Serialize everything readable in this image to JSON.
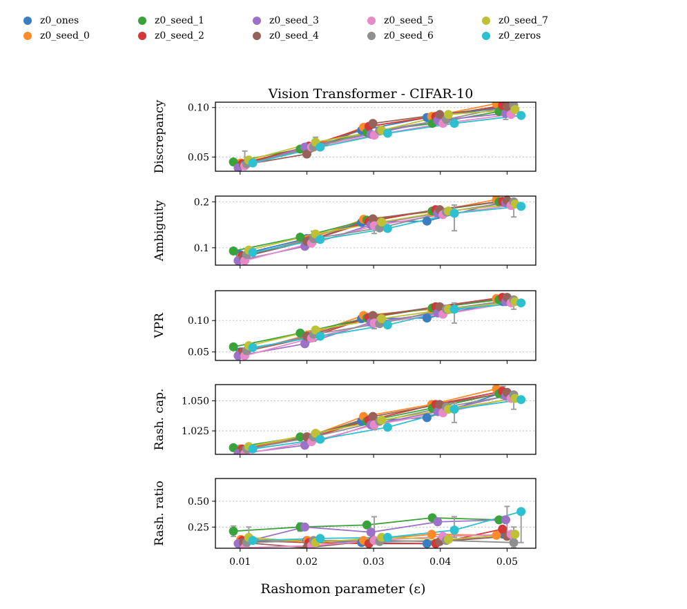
{
  "chart_data": {
    "type": "line",
    "title": "Vision Transformer - CIFAR-10",
    "xlabel": "Rashomon parameter (ε)",
    "xlim": [
      0.0063,
      0.0543
    ],
    "xticks": [
      0.01,
      0.02,
      0.03,
      0.04,
      0.05
    ],
    "xtick_labels": [
      "0.01",
      "0.02",
      "0.03",
      "0.04",
      "0.05"
    ],
    "legend_placement": "top",
    "series": [
      {
        "name": "z0_ones",
        "color": "#3a7ebf",
        "x": [
          0.01,
          0.02,
          0.0282,
          0.038,
          0.0494
        ]
      },
      {
        "name": "z0_seed_0",
        "color": "#ff8a2a",
        "x": [
          0.0101,
          0.0201,
          0.0285,
          0.0387,
          0.0484
        ]
      },
      {
        "name": "z0_seed_1",
        "color": "#3aa23a",
        "x": [
          0.009,
          0.019,
          0.029,
          0.0388,
          0.0488
        ]
      },
      {
        "name": "z0_seed_2",
        "color": "#d33838",
        "x": [
          0.0103,
          0.0203,
          0.0293,
          0.0393,
          0.0493
        ]
      },
      {
        "name": "z0_seed_3",
        "color": "#9b72c8",
        "x": [
          0.0097,
          0.0197,
          0.0296,
          0.0396,
          0.0498
        ]
      },
      {
        "name": "z0_seed_4",
        "color": "#96625a",
        "x": [
          0.0105,
          0.02,
          0.0299,
          0.0399,
          0.05
        ]
      },
      {
        "name": "z0_seed_5",
        "color": "#e88ac8",
        "x": [
          0.0107,
          0.0207,
          0.0301,
          0.0404,
          0.0506
        ]
      },
      {
        "name": "z0_seed_6",
        "color": "#8f8f8f",
        "x": [
          0.011,
          0.021,
          0.0309,
          0.0409,
          0.051
        ]
      },
      {
        "name": "z0_seed_7",
        "color": "#bec036",
        "x": [
          0.0113,
          0.0213,
          0.0312,
          0.0412,
          0.0512
        ]
      },
      {
        "name": "z0_zeros",
        "color": "#2cc0d0",
        "x": [
          0.0119,
          0.022,
          0.0321,
          0.0421,
          0.0521
        ]
      }
    ],
    "panels": [
      {
        "ylabel": "Discrepancy",
        "ylim": [
          0.0356,
          0.1054
        ],
        "yticks": [
          0.05,
          0.1
        ],
        "ytick_labels": [
          "0.05",
          "0.10"
        ],
        "values": {
          "z0_ones": [
            0.042,
            0.06,
            0.077,
            0.09,
            0.1
          ],
          "z0_seed_0": [
            0.044,
            0.059,
            0.08,
            0.091,
            0.104
          ],
          "z0_seed_1": [
            0.045,
            0.058,
            0.075,
            0.084,
            0.096
          ],
          "z0_seed_2": [
            0.043,
            0.061,
            0.081,
            0.091,
            0.102
          ],
          "z0_seed_3": [
            0.039,
            0.06,
            0.073,
            0.087,
            0.094
          ],
          "z0_seed_4": [
            0.042,
            0.053,
            0.084,
            0.093,
            0.101
          ],
          "z0_seed_5": [
            0.041,
            0.06,
            0.072,
            0.084,
            0.093
          ],
          "z0_seed_6": [
            0.043,
            0.06,
            0.077,
            0.088,
            0.102
          ],
          "z0_seed_7": [
            0.047,
            0.065,
            0.077,
            0.093,
            0.098
          ],
          "z0_zeros": [
            0.044,
            0.06,
            0.074,
            0.084,
            0.092
          ]
        },
        "errors": [
          {
            "x": 0.0107,
            "y": 0.047,
            "err": 0.009
          },
          {
            "x": 0.0213,
            "y": 0.065,
            "err": 0.005
          },
          {
            "x": 0.0498,
            "y": 0.094,
            "err": 0.006
          }
        ]
      },
      {
        "ylabel": "Ambiguity",
        "ylim": [
          0.0622,
          0.2124
        ],
        "yticks": [
          0.1,
          0.2
        ],
        "ytick_labels": [
          "0.1",
          "0.2"
        ],
        "values": {
          "z0_ones": [
            0.085,
            0.12,
            0.155,
            0.158,
            0.2
          ],
          "z0_seed_0": [
            0.08,
            0.118,
            0.162,
            0.178,
            0.205
          ],
          "z0_seed_1": [
            0.093,
            0.123,
            0.16,
            0.18,
            0.2
          ],
          "z0_seed_2": [
            0.082,
            0.115,
            0.157,
            0.183,
            0.201
          ],
          "z0_seed_3": [
            0.072,
            0.103,
            0.15,
            0.175,
            0.198
          ],
          "z0_seed_4": [
            0.08,
            0.114,
            0.163,
            0.183,
            0.203
          ],
          "z0_seed_5": [
            0.072,
            0.11,
            0.148,
            0.172,
            0.192
          ],
          "z0_seed_6": [
            0.085,
            0.12,
            0.143,
            0.178,
            0.2
          ],
          "z0_seed_7": [
            0.095,
            0.13,
            0.156,
            0.18,
            0.195
          ],
          "z0_zeros": [
            0.09,
            0.118,
            0.142,
            0.175,
            0.19
          ]
        },
        "errors": [
          {
            "x": 0.0107,
            "y": 0.076,
            "err": 0.008
          },
          {
            "x": 0.021,
            "y": 0.122,
            "err": 0.014
          },
          {
            "x": 0.0301,
            "y": 0.145,
            "err": 0.014
          },
          {
            "x": 0.0421,
            "y": 0.165,
            "err": 0.028
          },
          {
            "x": 0.051,
            "y": 0.185,
            "err": 0.018
          }
        ]
      },
      {
        "ylabel": "VPR",
        "ylim": [
          0.0365,
          0.1475
        ],
        "yticks": [
          0.05,
          0.1
        ],
        "ytick_labels": [
          "0.05",
          "0.10"
        ],
        "values": {
          "z0_ones": [
            0.05,
            0.075,
            0.103,
            0.104,
            0.13
          ],
          "z0_seed_0": [
            0.048,
            0.077,
            0.108,
            0.118,
            0.135
          ],
          "z0_seed_1": [
            0.058,
            0.08,
            0.104,
            0.12,
            0.133
          ],
          "z0_seed_2": [
            0.05,
            0.073,
            0.105,
            0.122,
            0.137
          ],
          "z0_seed_3": [
            0.044,
            0.063,
            0.097,
            0.112,
            0.13
          ],
          "z0_seed_4": [
            0.05,
            0.075,
            0.108,
            0.122,
            0.137
          ],
          "z0_seed_5": [
            0.044,
            0.072,
            0.096,
            0.11,
            0.128
          ],
          "z0_seed_6": [
            0.052,
            0.078,
            0.095,
            0.118,
            0.133
          ],
          "z0_seed_7": [
            0.06,
            0.085,
            0.103,
            0.118,
            0.13
          ],
          "z0_zeros": [
            0.057,
            0.075,
            0.093,
            0.118,
            0.128
          ]
        },
        "errors": [
          {
            "x": 0.0107,
            "y": 0.045,
            "err": 0.004
          },
          {
            "x": 0.021,
            "y": 0.075,
            "err": 0.008
          },
          {
            "x": 0.0301,
            "y": 0.095,
            "err": 0.008
          },
          {
            "x": 0.0421,
            "y": 0.112,
            "err": 0.016
          },
          {
            "x": 0.051,
            "y": 0.128,
            "err": 0.01
          }
        ]
      },
      {
        "ylabel": "Rash. cap.",
        "ylim": [
          1.0055,
          1.0635
        ],
        "yticks": [
          1.025,
          1.05
        ],
        "ytick_labels": [
          "1.025",
          "1.050"
        ],
        "values": {
          "z0_ones": [
            1.01,
            1.02,
            1.033,
            1.036,
            1.057
          ],
          "z0_seed_0": [
            1.01,
            1.02,
            1.037,
            1.047,
            1.06
          ],
          "z0_seed_1": [
            1.011,
            1.02,
            1.033,
            1.044,
            1.056
          ],
          "z0_seed_2": [
            1.01,
            1.019,
            1.034,
            1.047,
            1.058
          ],
          "z0_seed_3": [
            1.006,
            1.013,
            1.03,
            1.041,
            1.054
          ],
          "z0_seed_4": [
            1.009,
            1.02,
            1.037,
            1.047,
            1.057
          ],
          "z0_seed_5": [
            1.006,
            1.016,
            1.03,
            1.04,
            1.052
          ],
          "z0_seed_6": [
            1.01,
            1.02,
            1.033,
            1.045,
            1.055
          ],
          "z0_seed_7": [
            1.012,
            1.023,
            1.034,
            1.043,
            1.052
          ],
          "z0_zeros": [
            1.01,
            1.018,
            1.028,
            1.043,
            1.051
          ]
        },
        "errors": [
          {
            "x": 0.021,
            "y": 1.02,
            "err": 0.003
          },
          {
            "x": 0.0301,
            "y": 1.03,
            "err": 0.004
          },
          {
            "x": 0.0421,
            "y": 1.04,
            "err": 0.008
          },
          {
            "x": 0.051,
            "y": 1.05,
            "err": 0.007
          },
          {
            "x": 0.0494,
            "y": 1.057,
            "err": 0.005
          }
        ]
      },
      {
        "ylabel": "Rash. ratio",
        "ylim": [
          0.045,
          0.72
        ],
        "yticks": [
          0.25,
          0.5
        ],
        "ytick_labels": [
          "0.25",
          "0.50"
        ],
        "values": {
          "z0_ones": [
            0.1,
            0.12,
            0.1,
            0.09,
            0.18
          ],
          "z0_seed_0": [
            0.13,
            0.12,
            0.12,
            0.18,
            0.17
          ],
          "z0_seed_1": [
            0.21,
            0.25,
            0.27,
            0.34,
            0.32
          ],
          "z0_seed_2": [
            0.12,
            0.1,
            0.09,
            0.09,
            0.23
          ],
          "z0_seed_3": [
            0.09,
            0.25,
            0.2,
            0.3,
            0.32
          ],
          "z0_seed_4": [
            0.1,
            0.05,
            0.12,
            0.11,
            0.16
          ],
          "z0_seed_5": [
            0.05,
            0.07,
            0.12,
            0.16,
            0.18
          ],
          "z0_seed_6": [
            0.1,
            0.12,
            0.11,
            0.12,
            0.1
          ],
          "z0_seed_7": [
            0.15,
            0.1,
            0.15,
            0.13,
            0.18
          ],
          "z0_zeros": [
            0.12,
            0.14,
            0.15,
            0.22,
            0.4
          ]
        },
        "errors": [
          {
            "x": 0.009,
            "y": 0.21,
            "err": 0.05
          },
          {
            "x": 0.0113,
            "y": 0.15,
            "err": 0.1
          },
          {
            "x": 0.019,
            "y": 0.25,
            "err": 0.04
          },
          {
            "x": 0.0301,
            "y": 0.25,
            "err": 0.1
          },
          {
            "x": 0.0421,
            "y": 0.25,
            "err": 0.1
          },
          {
            "x": 0.05,
            "y": 0.3,
            "err": 0.15
          },
          {
            "x": 0.051,
            "y": 0.15,
            "err": 0.1
          },
          {
            "x": 0.0521,
            "y": 0.25,
            "err": 0.15
          }
        ]
      }
    ]
  }
}
